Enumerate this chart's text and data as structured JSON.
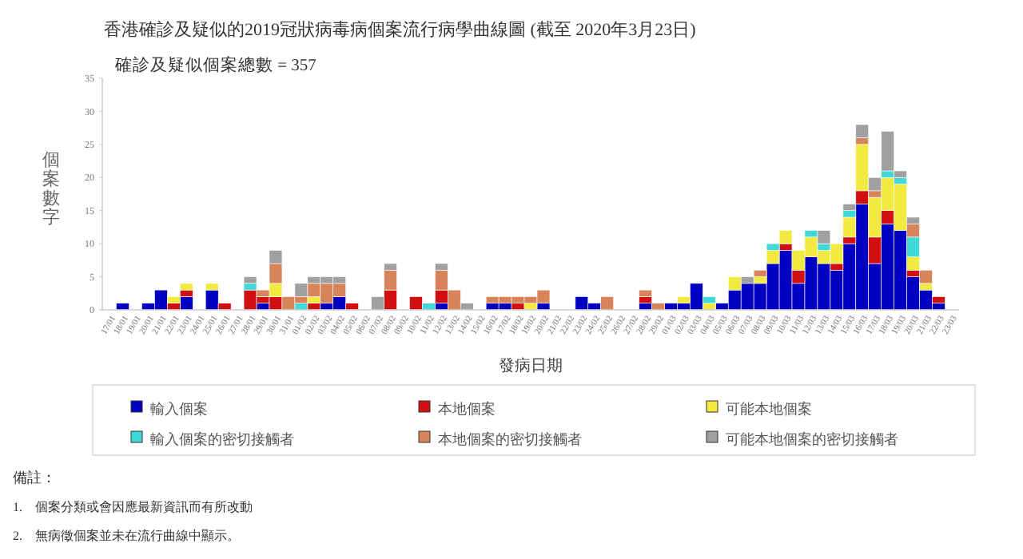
{
  "chart_data": {
    "type": "bar",
    "stacked": true,
    "title": "香港確診及疑似的2019冠狀病毒病個案流行病學曲線圖 (截至 2020年3月23日)",
    "subtitle": "確診及疑似個案總數 = 357",
    "xlabel": "發病日期",
    "ylabel": "個案數字",
    "categories": [
      "17/01",
      "18/01",
      "19/01",
      "20/01",
      "21/01",
      "22/01",
      "23/01",
      "24/01",
      "25/01",
      "26/01",
      "27/01",
      "28/01",
      "29/01",
      "30/01",
      "31/01",
      "01/02",
      "02/02",
      "03/02",
      "04/02",
      "05/02",
      "06/02",
      "07/02",
      "08/02",
      "09/02",
      "10/02",
      "11/02",
      "12/02",
      "13/02",
      "14/02",
      "15/02",
      "16/02",
      "17/02",
      "18/02",
      "19/02",
      "20/02",
      "21/02",
      "22/02",
      "23/02",
      "24/02",
      "25/02",
      "26/02",
      "27/02",
      "28/02",
      "29/02",
      "01/03",
      "02/03",
      "03/03",
      "04/03",
      "05/03",
      "06/03",
      "07/03",
      "08/03",
      "09/03",
      "10/03",
      "11/03",
      "12/03",
      "13/03",
      "14/03",
      "15/03",
      "16/03",
      "17/03",
      "18/03",
      "19/03",
      "20/03",
      "21/03",
      "22/03",
      "23/03"
    ],
    "series": [
      {
        "name": "輸入個案",
        "color": "#0000c0",
        "values": [
          0,
          1,
          0,
          1,
          3,
          0,
          2,
          0,
          3,
          0,
          0,
          0,
          1,
          0,
          0,
          0,
          0,
          1,
          2,
          0,
          0,
          0,
          0,
          0,
          0,
          0,
          1,
          0,
          0,
          0,
          1,
          1,
          0,
          0,
          1,
          0,
          0,
          2,
          1,
          0,
          0,
          0,
          1,
          0,
          1,
          1,
          4,
          0,
          1,
          3,
          4,
          4,
          7,
          9,
          4,
          8,
          7,
          6,
          10,
          16,
          7,
          13,
          12,
          5,
          3,
          1,
          0
        ]
      },
      {
        "name": "本地個案",
        "color": "#d01010",
        "values": [
          0,
          0,
          0,
          0,
          0,
          1,
          1,
          0,
          0,
          1,
          0,
          3,
          1,
          2,
          0,
          0,
          1,
          0,
          0,
          1,
          0,
          0,
          3,
          0,
          2,
          0,
          2,
          0,
          0,
          0,
          0,
          0,
          1,
          0,
          0,
          0,
          0,
          0,
          0,
          0,
          0,
          0,
          1,
          0,
          0,
          0,
          0,
          0,
          0,
          0,
          0,
          0,
          0,
          1,
          2,
          0,
          0,
          1,
          1,
          2,
          4,
          2,
          0,
          1,
          0,
          1,
          0
        ]
      },
      {
        "name": "可能本地個案",
        "color": "#f2ea40",
        "values": [
          0,
          0,
          0,
          0,
          0,
          1,
          1,
          0,
          1,
          0,
          0,
          0,
          0,
          2,
          0,
          0,
          1,
          0,
          0,
          0,
          0,
          0,
          0,
          0,
          0,
          0,
          0,
          0,
          0,
          0,
          0,
          0,
          0,
          1,
          0,
          0,
          0,
          0,
          0,
          0,
          0,
          0,
          0,
          0,
          0,
          1,
          0,
          1,
          0,
          2,
          0,
          1,
          2,
          2,
          3,
          3,
          2,
          3,
          3,
          7,
          6,
          5,
          7,
          2,
          1,
          0,
          0
        ]
      },
      {
        "name": "輸入個案的密切接觸者",
        "color": "#40d8d8",
        "values": [
          0,
          0,
          0,
          0,
          0,
          0,
          0,
          0,
          0,
          0,
          0,
          1,
          0,
          0,
          0,
          1,
          0,
          0,
          0,
          0,
          0,
          0,
          0,
          0,
          0,
          1,
          0,
          0,
          0,
          0,
          0,
          0,
          0,
          0,
          0,
          0,
          0,
          0,
          0,
          0,
          0,
          0,
          0,
          0,
          0,
          0,
          0,
          1,
          0,
          0,
          0,
          0,
          1,
          0,
          0,
          1,
          1,
          0,
          1,
          0,
          0,
          1,
          1,
          3,
          0,
          0,
          0
        ]
      },
      {
        "name": "本地個案的密切接觸者",
        "color": "#d8845a",
        "values": [
          0,
          0,
          0,
          0,
          0,
          0,
          0,
          0,
          0,
          0,
          0,
          0,
          1,
          3,
          2,
          1,
          2,
          3,
          2,
          0,
          0,
          0,
          3,
          0,
          0,
          0,
          3,
          3,
          0,
          0,
          1,
          1,
          1,
          1,
          2,
          0,
          0,
          0,
          0,
          2,
          0,
          0,
          1,
          1,
          0,
          0,
          0,
          0,
          0,
          0,
          0,
          1,
          0,
          0,
          0,
          0,
          0,
          0,
          0,
          1,
          1,
          0,
          0,
          2,
          2,
          0,
          0
        ]
      },
      {
        "name": "可能本地個案的密切接觸者",
        "color": "#a0a0a0",
        "values": [
          0,
          0,
          0,
          0,
          0,
          0,
          0,
          0,
          0,
          0,
          0,
          1,
          0,
          2,
          0,
          2,
          1,
          1,
          1,
          0,
          0,
          2,
          1,
          0,
          0,
          0,
          1,
          0,
          1,
          0,
          0,
          0,
          0,
          0,
          0,
          0,
          0,
          0,
          0,
          0,
          0,
          0,
          0,
          0,
          0,
          0,
          0,
          0,
          0,
          0,
          1,
          0,
          0,
          0,
          0,
          0,
          2,
          0,
          1,
          2,
          2,
          6,
          1,
          1,
          0,
          0,
          0
        ]
      }
    ],
    "ylim": [
      0,
      35
    ],
    "yticks": [
      0,
      5,
      10,
      15,
      20,
      25,
      30,
      35
    ],
    "legend": "bottom",
    "annotations": [
      "備註：",
      "1.　個案分類或會因應最新資訊而有所改動",
      "2.　無病徵個案並未在流行曲線中顯示。"
    ]
  }
}
